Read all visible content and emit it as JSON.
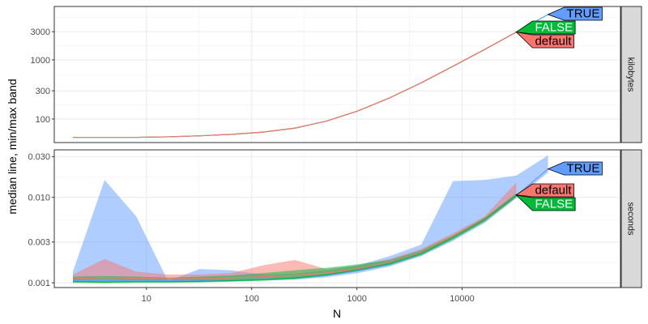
{
  "chart_data": {
    "type": "line",
    "xlabel": "N",
    "ylabel": "median line, min/max band",
    "x_scale": "log10",
    "xlim": [
      1.33,
      320000
    ],
    "x_ticks": [
      10,
      100,
      1000,
      10000
    ],
    "x_tick_labels": [
      "10",
      "100",
      "1000",
      "10000"
    ],
    "grid": true,
    "legend": "none (labels at line ends)",
    "series_colors": {
      "TRUE": "#619CFF",
      "FALSE": "#00BA38",
      "default": "#F8766D"
    },
    "panels": [
      {
        "strip": "kilobytes",
        "y_scale": "log10",
        "ylim": [
          40,
          8000
        ],
        "y_ticks": [
          100,
          300,
          1000,
          3000
        ],
        "y_tick_labels": [
          "100",
          "300",
          "1000",
          "3000"
        ],
        "end_labels": [
          "TRUE",
          "FALSE",
          "default"
        ],
        "series": [
          {
            "name": "TRUE",
            "x": [
              2,
              4,
              8,
              16,
              32,
              64,
              128,
              256,
              512,
              1024,
              2048,
              4096,
              8192,
              16384,
              32768,
              65536
            ],
            "median": [
              49,
              49,
              49,
              50,
              52,
              55,
              60,
              70,
              92,
              137,
              228,
              410,
              780,
              1500,
              2950,
              5860
            ]
          },
          {
            "name": "FALSE",
            "x": [
              2,
              4,
              8,
              16,
              32,
              64,
              128,
              256,
              512,
              1024,
              2048,
              4096,
              8192,
              16384,
              32768
            ],
            "median": [
              49,
              49,
              49,
              50,
              52,
              55,
              60,
              70,
              92,
              137,
              228,
              410,
              780,
              1500,
              2950
            ]
          },
          {
            "name": "default",
            "x": [
              2,
              4,
              8,
              16,
              32,
              64,
              128,
              256,
              512,
              1024,
              2048,
              4096,
              8192,
              16384,
              32768
            ],
            "median": [
              49,
              49,
              49,
              50,
              52,
              55,
              60,
              70,
              92,
              137,
              228,
              410,
              780,
              1500,
              2950
            ]
          }
        ]
      },
      {
        "strip": "seconds",
        "y_scale": "log10",
        "ylim": [
          0.00088,
          0.036
        ],
        "y_ticks": [
          0.001,
          0.003,
          0.01,
          0.03
        ],
        "y_tick_labels": [
          "0.001",
          "0.003",
          "0.010",
          "0.030"
        ],
        "end_labels": [
          "TRUE",
          "default",
          "FALSE"
        ],
        "series": [
          {
            "name": "TRUE",
            "x": [
              2,
              4,
              8,
              16,
              32,
              64,
              128,
              256,
              512,
              1024,
              2048,
              4096,
              8192,
              16384,
              32768,
              65536
            ],
            "median": [
              0.00106,
              0.00106,
              0.00107,
              0.00106,
              0.00107,
              0.00108,
              0.0011,
              0.00114,
              0.00122,
              0.00138,
              0.00165,
              0.00218,
              0.0034,
              0.0055,
              0.0105,
              0.0215
            ],
            "min": [
              0.00102,
              0.00103,
              0.00103,
              0.00103,
              0.00103,
              0.00104,
              0.00106,
              0.00109,
              0.00116,
              0.0013,
              0.00155,
              0.00205,
              0.0031,
              0.005,
              0.0098,
              0.0195
            ],
            "max": [
              0.00135,
              0.016,
              0.006,
              0.00105,
              0.00145,
              0.0014,
              0.00125,
              0.00128,
              0.0014,
              0.0016,
              0.00205,
              0.0028,
              0.0155,
              0.016,
              0.018,
              0.031
            ]
          },
          {
            "name": "default",
            "x": [
              2,
              4,
              8,
              16,
              32,
              64,
              128,
              256,
              512,
              1024,
              2048,
              4096,
              8192,
              16384,
              32768
            ],
            "median": [
              0.00112,
              0.00115,
              0.00113,
              0.00112,
              0.00112,
              0.00114,
              0.00118,
              0.00122,
              0.0013,
              0.00145,
              0.00172,
              0.00225,
              0.0035,
              0.0056,
              0.0107
            ],
            "min": [
              0.00108,
              0.0011,
              0.00109,
              0.00108,
              0.00108,
              0.0011,
              0.00113,
              0.00117,
              0.00124,
              0.00138,
              0.00163,
              0.00212,
              0.0033,
              0.0052,
              0.01
            ],
            "max": [
              0.00125,
              0.0019,
              0.00135,
              0.00125,
              0.00125,
              0.0013,
              0.0016,
              0.00185,
              0.00145,
              0.0016,
              0.0019,
              0.0025,
              0.0038,
              0.006,
              0.015
            ]
          },
          {
            "name": "FALSE",
            "x": [
              2,
              4,
              8,
              16,
              32,
              64,
              128,
              256,
              512,
              1024,
              2048,
              4096,
              8192,
              16384,
              32768
            ],
            "median": [
              0.00103,
              0.00102,
              0.00103,
              0.00103,
              0.00104,
              0.00106,
              0.00109,
              0.00114,
              0.00124,
              0.00142,
              0.00168,
              0.0022,
              0.0034,
              0.0055,
              0.0106
            ],
            "min": [
              0.001,
              0.00099,
              0.001,
              0.001,
              0.00101,
              0.00103,
              0.00106,
              0.0011,
              0.0012,
              0.00136,
              0.0016,
              0.0021,
              0.0032,
              0.0052,
              0.01
            ],
            "max": [
              0.00118,
              0.0012,
              0.00118,
              0.00115,
              0.00118,
              0.00122,
              0.0013,
              0.0014,
              0.0015,
              0.00165,
              0.00185,
              0.0024,
              0.0036,
              0.0058,
              0.0112
            ]
          }
        ]
      }
    ]
  }
}
